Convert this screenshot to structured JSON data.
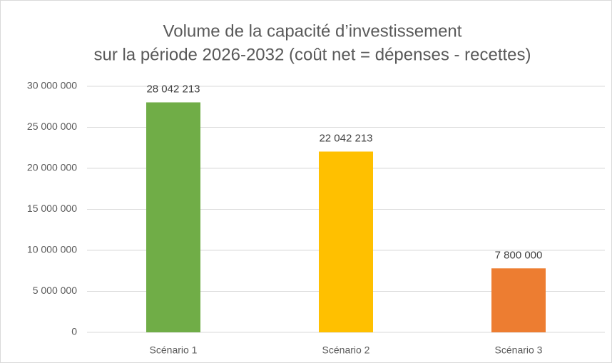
{
  "chart_data": {
    "type": "bar",
    "title": [
      "Volume de la capacité d’investissement",
      "sur la période 2026-2032 (coût net = dépenses  - recettes)"
    ],
    "categories": [
      "Scénario 1",
      "Scénario 2",
      "Scénario 3"
    ],
    "values": [
      28042213,
      22042213,
      7800000
    ],
    "value_labels": [
      "28 042 213",
      "22 042 213",
      "7 800 000"
    ],
    "colors": [
      "#70ad47",
      "#ffc000",
      "#ed7d31"
    ],
    "ylim": [
      0,
      30000000
    ],
    "yticks": [
      0,
      {
        "value": 5000000,
        "label": "5 000 000"
      },
      {
        "value": 10000000,
        "label": "10 000 000"
      },
      {
        "value": 15000000,
        "label": "15 000 000"
      },
      {
        "value": 20000000,
        "label": "20 000 000"
      },
      {
        "value": 25000000,
        "label": "25 000 000"
      },
      {
        "value": 30000000,
        "label": "30 000 000"
      }
    ],
    "grid": true
  }
}
